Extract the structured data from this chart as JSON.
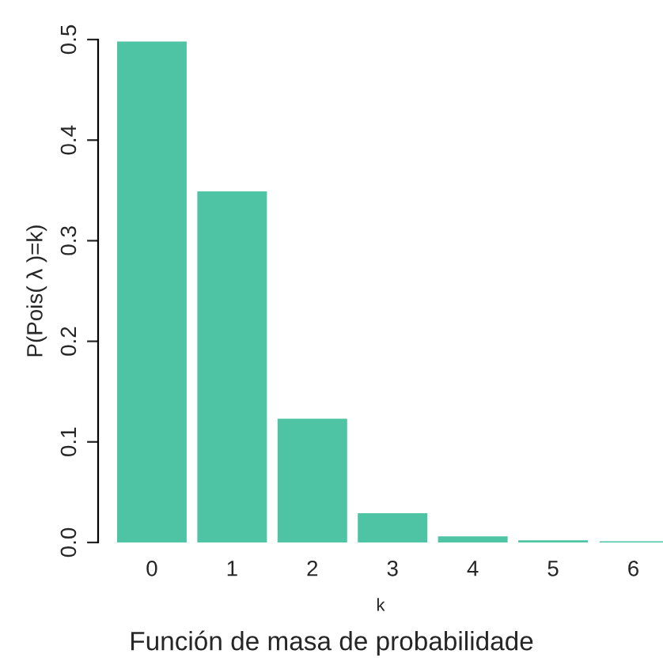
{
  "chart_data": {
    "type": "bar",
    "categories": [
      "0",
      "1",
      "2",
      "3",
      "4",
      "5",
      "6"
    ],
    "values": [
      0.497,
      0.348,
      0.122,
      0.028,
      0.005,
      0.001,
      0.0
    ],
    "color": "#4fc4a5",
    "xlabel": "k",
    "ylabel": "P(Pois( λ )=k)",
    "ylim": [
      0,
      0.5
    ],
    "yticks": [
      {
        "value": 0,
        "label": "0.0"
      },
      0.1,
      0.2,
      0.3,
      0.4,
      0.5
    ],
    "annotations": [
      "Función de masa de probabilidade"
    ],
    "grid": false
  }
}
